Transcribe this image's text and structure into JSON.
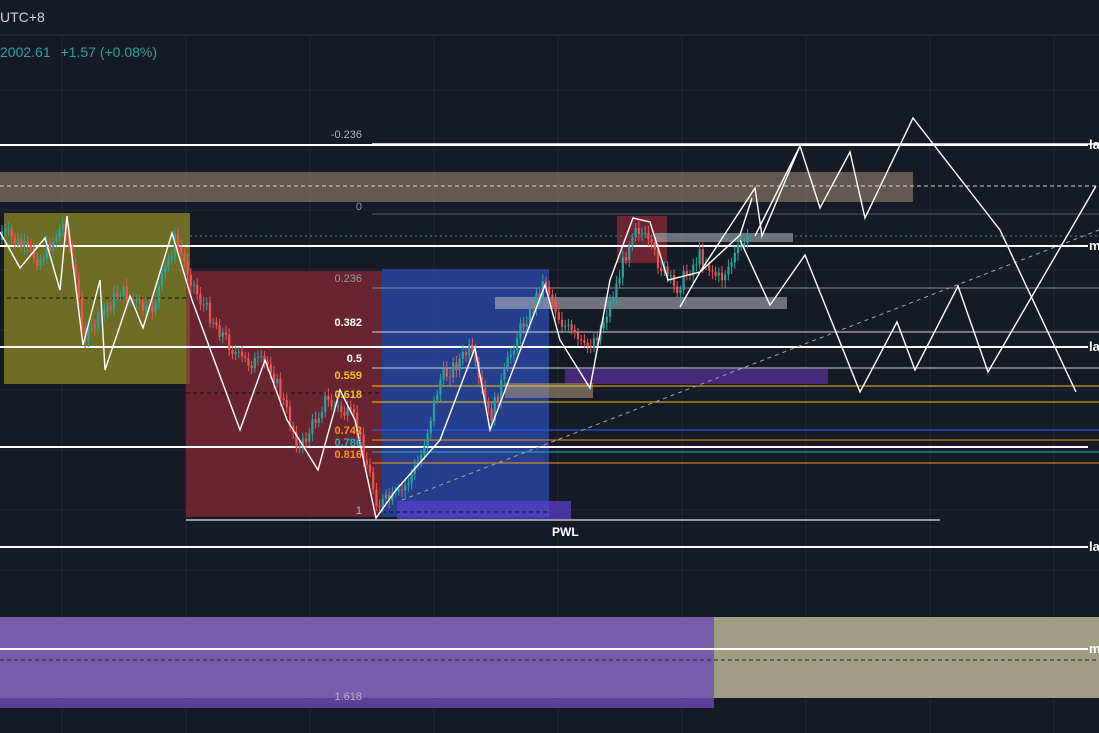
{
  "header": {
    "timezone": "UTC+8",
    "price": "2002.61",
    "change": "+1.57 (+0.08%)"
  },
  "colors": {
    "background": "#161a25",
    "grid": "#222733",
    "up_candle": "#26a69a",
    "down_candle": "#ef5350",
    "line": "#ffffff",
    "fib_gray": "#9598a1",
    "fib_gold": "#f5c518",
    "fib_orange": "#f7931a",
    "fib_teal": "#2ab0c5",
    "zone_tan": "#a38f78",
    "zone_olive": "#8c8a27",
    "zone_red": "#8b2a36",
    "zone_blue": "#2b48a8",
    "zone_purple": "#7e5fb4",
    "zone_khaki": "#a7a588"
  },
  "chart_data": {
    "type": "line",
    "title": "",
    "grid": true,
    "fib_levels": [
      {
        "label": "-0.236"
      },
      {
        "label": "0"
      },
      {
        "label": "0.236"
      },
      {
        "label": "0.382"
      },
      {
        "label": "0.5"
      },
      {
        "label": "0.559"
      },
      {
        "label": "0.618"
      },
      {
        "label": "0.742"
      },
      {
        "label": "0.786"
      },
      {
        "label": "0.816"
      },
      {
        "label": "1"
      },
      {
        "label": "1.618"
      }
    ],
    "right_edge_labels": [
      "la",
      "ma",
      "la",
      "la",
      "ma"
    ],
    "annotations": [
      "PWL"
    ]
  }
}
